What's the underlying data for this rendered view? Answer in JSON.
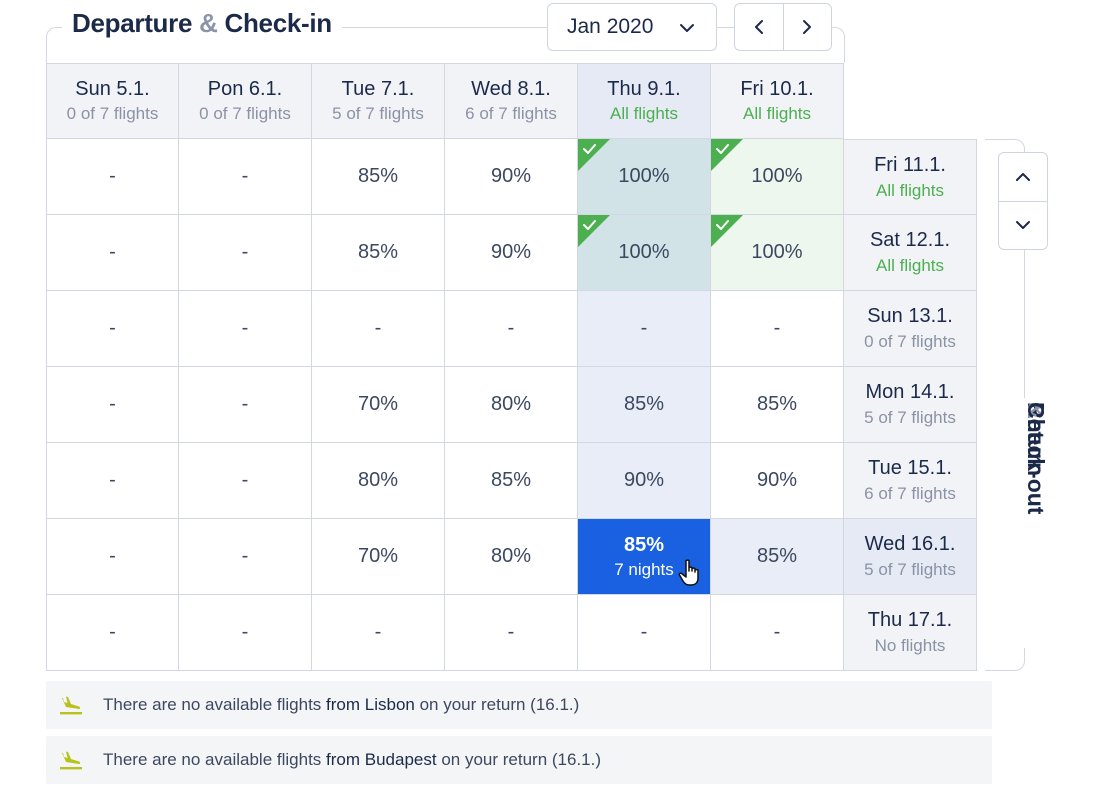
{
  "departure": {
    "title_a": "Departure",
    "amp": "&",
    "title_b": "Check-in"
  },
  "return": {
    "title_a": "Return",
    "amp": "&",
    "title_b": "Check-out"
  },
  "month_select": {
    "value": "Jan 2020"
  },
  "columns": [
    {
      "date": "Sun 5.1.",
      "sub": "0 of 7 flights"
    },
    {
      "date": "Pon 6.1.",
      "sub": "0 of 7 flights"
    },
    {
      "date": "Tue 7.1.",
      "sub": "5 of 7 flights"
    },
    {
      "date": "Wed 8.1.",
      "sub": "6 of 7 flights"
    },
    {
      "date": "Thu 9.1.",
      "sub": "All flights"
    },
    {
      "date": "Fri 10.1.",
      "sub": "All flights"
    }
  ],
  "rows": [
    {
      "date": "Fri 11.1.",
      "sub": "All flights",
      "cells": [
        "-",
        "-",
        "85%",
        "90%",
        "100%",
        "100%"
      ]
    },
    {
      "date": "Sat 12.1.",
      "sub": "All flights",
      "cells": [
        "-",
        "-",
        "85%",
        "90%",
        "100%",
        "100%"
      ]
    },
    {
      "date": "Sun 13.1.",
      "sub": "0 of 7 flights",
      "cells": [
        "-",
        "-",
        "-",
        "-",
        "-",
        "-"
      ]
    },
    {
      "date": "Mon 14.1.",
      "sub": "5 of 7 flights",
      "cells": [
        "-",
        "-",
        "70%",
        "80%",
        "85%",
        "85%"
      ]
    },
    {
      "date": "Tue 15.1.",
      "sub": "6 of 7 flights",
      "cells": [
        "-",
        "-",
        "80%",
        "85%",
        "90%",
        "90%"
      ]
    },
    {
      "date": "Wed 16.1.",
      "sub": "5 of 7 flights",
      "cells": [
        "-",
        "-",
        "70%",
        "80%",
        "85%",
        "85%"
      ]
    },
    {
      "date": "Thu 17.1.",
      "sub": "No flights",
      "cells": [
        "-",
        "-",
        "-",
        "-",
        "-",
        "-"
      ]
    }
  ],
  "selected_cell": {
    "value": "85%",
    "nights": "7 nights"
  },
  "notices": [
    {
      "pre": "There are no available flights",
      "city": "from Lisbon",
      "post": "on your return (16.1.)"
    },
    {
      "pre": "There are no available flights",
      "city": "from Budapest",
      "post": "on your return (16.1.)"
    }
  ],
  "colors": {
    "accent": "#1961e0",
    "green": "#4caf50",
    "plane": "#b9c21d"
  },
  "icons": {
    "month_dropdown": "chevron-down-icon",
    "prev": "chevron-left-icon",
    "next": "chevron-right-icon",
    "up": "chevron-up-icon",
    "down": "chevron-down-icon",
    "check": "check-corner-icon",
    "plane": "plane-landing-icon"
  }
}
